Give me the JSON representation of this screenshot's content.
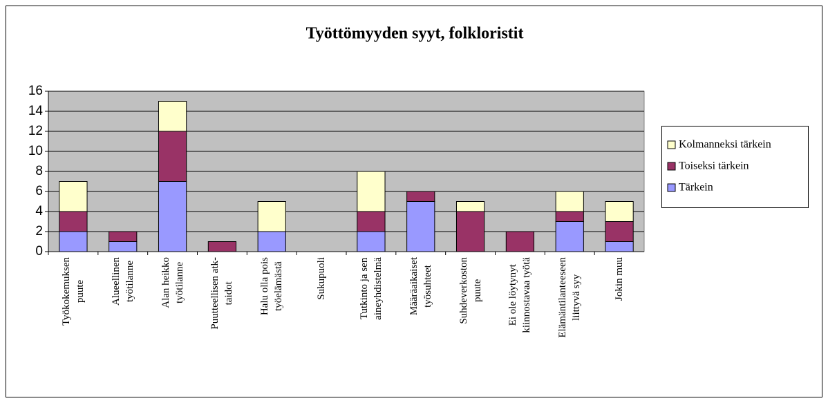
{
  "chart_data": {
    "type": "stacked_bar",
    "title": "Työttömyyden syyt, folkloristit",
    "categories": [
      "Työkokemuksen\npuute",
      "Alueellinen\ntyötilanne",
      "Alan heikko\ntyötilanne",
      "Puutteellisen atk-\ntaidot",
      "Halu olla pois\ntyöelämästä",
      "Sukupuoli",
      "Tutkinto ja sen\naineyhdistelmä",
      "Määräaikaiset\ntyösuhteet",
      "Suhdeverkoston\npuute",
      "Ei ole löytynyt\nkiinnostavaa työtä",
      "Elämäntilanteeseen\nliittyvä syy",
      "Jokin muu"
    ],
    "series": [
      {
        "name": "Tärkein",
        "color": "#9999ff",
        "values": [
          2,
          1,
          7,
          0,
          2,
          0,
          2,
          5,
          0,
          0,
          3,
          1
        ]
      },
      {
        "name": "Toiseksi tärkein",
        "color": "#993366",
        "values": [
          2,
          1,
          5,
          1,
          0,
          0,
          2,
          1,
          4,
          2,
          1,
          2
        ]
      },
      {
        "name": "Kolmanneksi tärkein",
        "color": "#ffffcc",
        "values": [
          3,
          0,
          3,
          0,
          3,
          0,
          4,
          0,
          1,
          0,
          2,
          2
        ]
      }
    ],
    "ylim": [
      0,
      16
    ],
    "yticks": [
      0,
      2,
      4,
      6,
      8,
      10,
      12,
      14,
      16
    ],
    "grid": true,
    "legend": "right"
  }
}
